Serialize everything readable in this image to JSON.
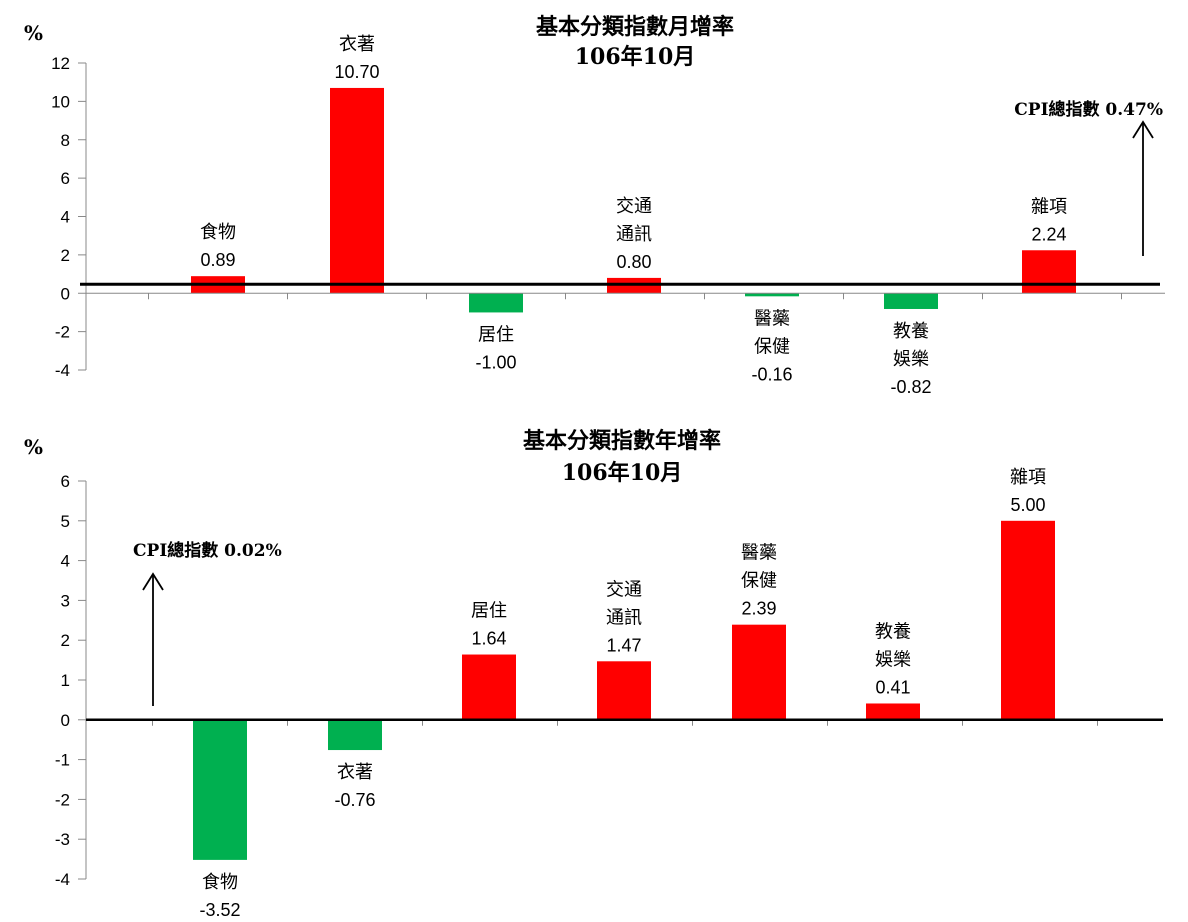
{
  "chart_data": [
    {
      "type": "bar",
      "title": "基本分類指數月增率",
      "subtitle": "106年10月",
      "ylabel": "%",
      "ylim": [
        -4,
        12
      ],
      "yticks": [
        -4,
        -2,
        0,
        2,
        4,
        6,
        8,
        10,
        12
      ],
      "tick_labels": [
        "-4",
        "-2",
        "0",
        "2",
        "4",
        "6",
        "8",
        "10",
        "12"
      ],
      "categories": [
        [
          "食物"
        ],
        [
          "衣著"
        ],
        [
          "居住"
        ],
        [
          "交通",
          "通訊"
        ],
        [
          "醫藥",
          "保健"
        ],
        [
          "教養",
          "娛樂"
        ],
        [
          "雜項"
        ]
      ],
      "values": [
        0.89,
        10.7,
        -1.0,
        0.8,
        -0.16,
        -0.82,
        2.24
      ],
      "value_labels": [
        "0.89",
        "10.70",
        "-1.00",
        "0.80",
        "-0.16",
        "-0.82",
        "2.24"
      ],
      "cpi_label": "CPI總指數 0.47%",
      "cpi_value": 0.47,
      "positive_color": "#ff0000",
      "negative_color": "#00b050",
      "grid": false
    },
    {
      "type": "bar",
      "title": "基本分類指數年增率",
      "subtitle": "106年10月",
      "ylabel": "%",
      "ylim": [
        -4,
        6
      ],
      "yticks": [
        -4,
        -3,
        -2,
        -1,
        0,
        1,
        2,
        3,
        4,
        5,
        6
      ],
      "tick_labels": [
        "-4",
        "-3",
        "-2",
        "-1",
        "0",
        "1",
        "2",
        "3",
        "4",
        "5",
        "6"
      ],
      "categories": [
        [
          "食物"
        ],
        [
          "衣著"
        ],
        [
          "居住"
        ],
        [
          "交通",
          "通訊"
        ],
        [
          "醫藥",
          "保健"
        ],
        [
          "教養",
          "娛樂"
        ],
        [
          "雜項"
        ]
      ],
      "values": [
        -3.52,
        -0.76,
        1.64,
        1.47,
        2.39,
        0.41,
        5.0
      ],
      "value_labels": [
        "-3.52",
        "-0.76",
        "1.64",
        "1.47",
        "2.39",
        "0.41",
        "5.00"
      ],
      "cpi_label": "CPI總指數 0.02%",
      "cpi_value": 0.02,
      "positive_color": "#ff0000",
      "negative_color": "#00b050",
      "grid": false
    }
  ]
}
